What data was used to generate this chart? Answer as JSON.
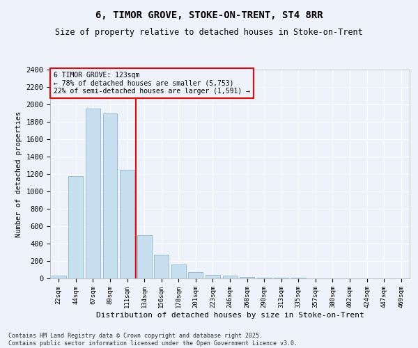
{
  "title": "6, TIMOR GROVE, STOKE-ON-TRENT, ST4 8RR",
  "subtitle": "Size of property relative to detached houses in Stoke-on-Trent",
  "xlabel": "Distribution of detached houses by size in Stoke-on-Trent",
  "ylabel": "Number of detached properties",
  "categories": [
    "22sqm",
    "44sqm",
    "67sqm",
    "89sqm",
    "111sqm",
    "134sqm",
    "156sqm",
    "178sqm",
    "201sqm",
    "223sqm",
    "246sqm",
    "268sqm",
    "290sqm",
    "313sqm",
    "335sqm",
    "357sqm",
    "380sqm",
    "402sqm",
    "424sqm",
    "447sqm",
    "469sqm"
  ],
  "values": [
    30,
    1175,
    1950,
    1900,
    1250,
    500,
    270,
    160,
    75,
    40,
    30,
    15,
    10,
    5,
    5,
    3,
    2,
    2,
    1,
    1,
    1
  ],
  "bar_color": "#c8dff0",
  "bar_edge_color": "#7aaac8",
  "ylim": [
    0,
    2400
  ],
  "yticks": [
    0,
    200,
    400,
    600,
    800,
    1000,
    1200,
    1400,
    1600,
    1800,
    2000,
    2200,
    2400
  ],
  "vline_color": "red",
  "vline_pos": 4.5,
  "annotation_text": "6 TIMOR GROVE: 123sqm\n← 78% of detached houses are smaller (5,753)\n22% of semi-detached houses are larger (1,591) →",
  "annotation_box_color": "red",
  "bg_color": "#eef2fb",
  "grid_color": "#ffffff",
  "footnote": "Contains HM Land Registry data © Crown copyright and database right 2025.\nContains public sector information licensed under the Open Government Licence v3.0."
}
